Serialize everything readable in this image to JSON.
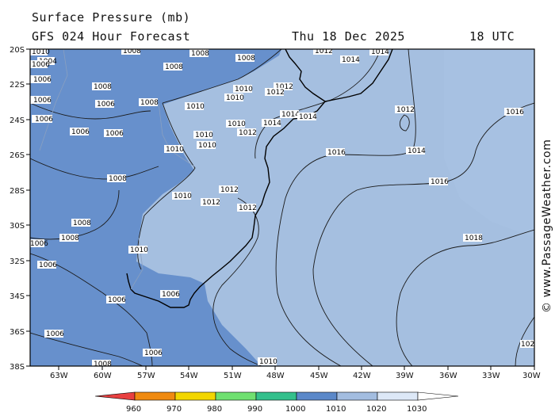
{
  "header": {
    "title": "Surface Pressure (mb)",
    "subtitle": "GFS 024 Hour Forecast",
    "date": "Thu 18 Dec 2025",
    "time": "18 UTC"
  },
  "watermark": "© www.PassageWeather.com",
  "axes": {
    "latitude_labels": [
      "20S",
      "22S",
      "24S",
      "26S",
      "28S",
      "30S",
      "32S",
      "34S",
      "36S",
      "38S"
    ],
    "longitude_labels": [
      "63W",
      "60W",
      "57W",
      "54W",
      "51W",
      "48W",
      "45W",
      "42W",
      "39W",
      "36W",
      "33W",
      "30W"
    ]
  },
  "colorbar": {
    "values": [
      "960",
      "970",
      "980",
      "990",
      "1000",
      "1010",
      "1020",
      "1030"
    ],
    "colors": [
      "#e84040",
      "#f08a10",
      "#f2d600",
      "#6fe070",
      "#34c08c",
      "#5b88c9",
      "#a3bde0",
      "#dde8f7",
      "#ffffff"
    ]
  },
  "isobar_labels": [
    {
      "text": "1010"
    },
    {
      "text": "1004"
    },
    {
      "text": "1006"
    },
    {
      "text": "1008"
    },
    {
      "text": "1006"
    },
    {
      "text": "1008"
    },
    {
      "text": "1008"
    },
    {
      "text": "1008"
    },
    {
      "text": "1012"
    },
    {
      "text": "1014"
    },
    {
      "text": "1014"
    },
    {
      "text": "1006"
    },
    {
      "text": "1008"
    },
    {
      "text": "1006"
    },
    {
      "text": "1008"
    },
    {
      "text": "1010"
    },
    {
      "text": "1010"
    },
    {
      "text": "1012"
    },
    {
      "text": "1012"
    },
    {
      "text": "1010"
    },
    {
      "text": "1012"
    },
    {
      "text": "1014"
    },
    {
      "text": "1014"
    },
    {
      "text": "1014"
    },
    {
      "text": "1006"
    },
    {
      "text": "1010"
    },
    {
      "text": "1012"
    },
    {
      "text": "1006"
    },
    {
      "text": "1006"
    },
    {
      "text": "1010"
    },
    {
      "text": "1010"
    },
    {
      "text": "1010"
    },
    {
      "text": "1016"
    },
    {
      "text": "1014"
    },
    {
      "text": "1008"
    },
    {
      "text": "1010"
    },
    {
      "text": "1012"
    },
    {
      "text": "1012"
    },
    {
      "text": "1012"
    },
    {
      "text": "1016"
    },
    {
      "text": "1008"
    },
    {
      "text": "1008"
    },
    {
      "text": "1006"
    },
    {
      "text": "1010"
    },
    {
      "text": "1018"
    },
    {
      "text": "1006"
    },
    {
      "text": "1006"
    },
    {
      "text": "1006"
    },
    {
      "text": "1006"
    },
    {
      "text": "1006"
    },
    {
      "text": "1008"
    },
    {
      "text": "1010"
    },
    {
      "text": "1016"
    },
    {
      "text": "102"
    }
  ]
}
